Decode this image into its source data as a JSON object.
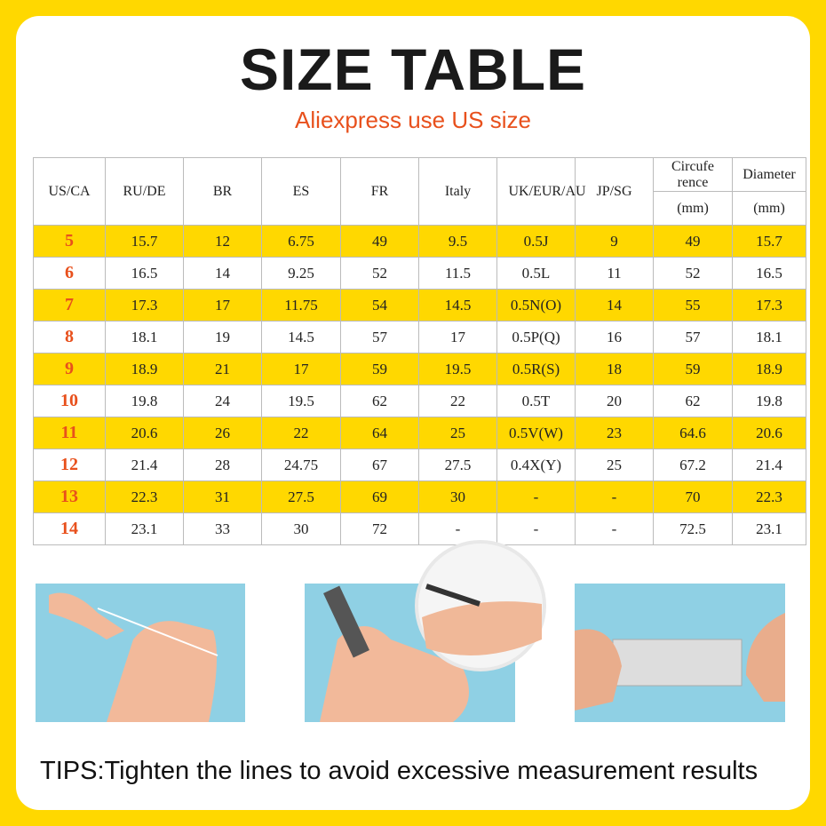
{
  "header": {
    "title": "SIZE TABLE",
    "subtitle": "Aliexpress use US size"
  },
  "table": {
    "headers": [
      "US/CA",
      "RU/DE",
      "BR",
      "ES",
      "FR",
      "Italy",
      "UK/EUR/AU",
      "JP/SG",
      {
        "label": "Circufe rence",
        "unit": "(mm)"
      },
      {
        "label": "Diameter",
        "unit": "(mm)"
      }
    ],
    "rows": [
      [
        "5",
        "15.7",
        "12",
        "6.75",
        "49",
        "9.5",
        "0.5J",
        "9",
        "49",
        "15.7"
      ],
      [
        "6",
        "16.5",
        "14",
        "9.25",
        "52",
        "11.5",
        "0.5L",
        "11",
        "52",
        "16.5"
      ],
      [
        "7",
        "17.3",
        "17",
        "11.75",
        "54",
        "14.5",
        "0.5N(O)",
        "14",
        "55",
        "17.3"
      ],
      [
        "8",
        "18.1",
        "19",
        "14.5",
        "57",
        "17",
        "0.5P(Q)",
        "16",
        "57",
        "18.1"
      ],
      [
        "9",
        "18.9",
        "21",
        "17",
        "59",
        "19.5",
        "0.5R(S)",
        "18",
        "59",
        "18.9"
      ],
      [
        "10",
        "19.8",
        "24",
        "19.5",
        "62",
        "22",
        "0.5T",
        "20",
        "62",
        "19.8"
      ],
      [
        "11",
        "20.6",
        "26",
        "22",
        "64",
        "25",
        "0.5V(W)",
        "23",
        "64.6",
        "20.6"
      ],
      [
        "12",
        "21.4",
        "28",
        "24.75",
        "67",
        "27.5",
        "0.4X(Y)",
        "25",
        "67.2",
        "21.4"
      ],
      [
        "13",
        "22.3",
        "31",
        "27.5",
        "69",
        "30",
        "-",
        "-",
        "70",
        "22.3"
      ],
      [
        "14",
        "23.1",
        "33",
        "30",
        "72",
        "-",
        "-",
        "-",
        "72.5",
        "23.1"
      ]
    ]
  },
  "tips": "TIPS:Tighten the lines to avoid excessive measurement results"
}
